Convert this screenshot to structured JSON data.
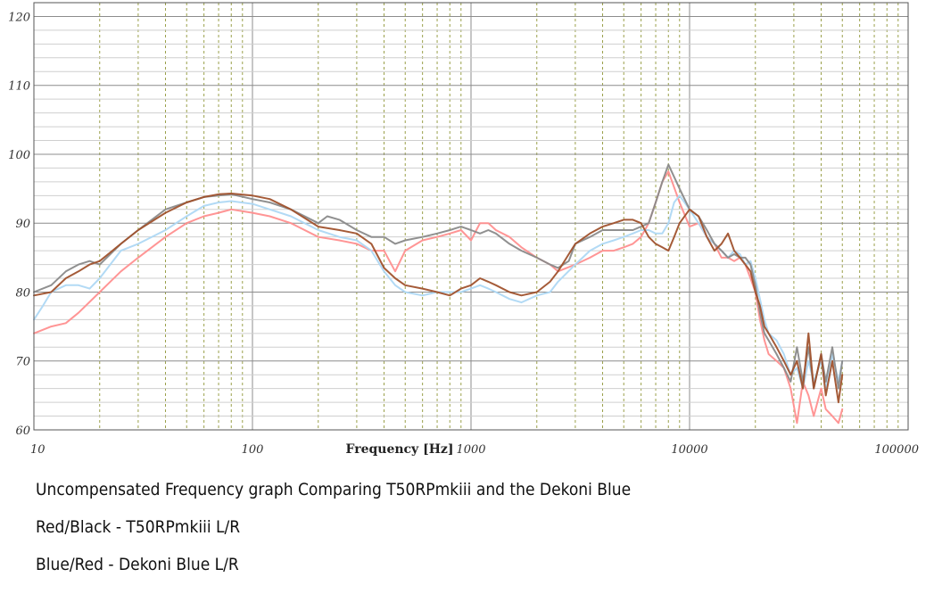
{
  "chart_data": {
    "type": "line",
    "xlabel": "Frequency [Hz]",
    "x_scale": "log",
    "xlim": [
      10,
      100000
    ],
    "ylim": [
      60,
      122
    ],
    "x_ticks": [
      "10",
      "100",
      "1000",
      "10000",
      "100000"
    ],
    "y_ticks": [
      "60",
      "70",
      "80",
      "90",
      "100",
      "110",
      "120"
    ],
    "grid": true,
    "series": [
      {
        "color": "#ff8f8f",
        "points": [
          [
            10,
            74
          ],
          [
            12,
            75
          ],
          [
            14,
            75.5
          ],
          [
            16,
            77
          ],
          [
            20,
            80
          ],
          [
            25,
            83
          ],
          [
            30,
            85
          ],
          [
            40,
            88
          ],
          [
            50,
            90
          ],
          [
            60,
            91
          ],
          [
            70,
            91.5
          ],
          [
            80,
            92
          ],
          [
            100,
            91.5
          ],
          [
            120,
            91
          ],
          [
            150,
            90
          ],
          [
            200,
            88
          ],
          [
            250,
            87.5
          ],
          [
            300,
            87
          ],
          [
            350,
            86
          ],
          [
            400,
            86
          ],
          [
            450,
            83
          ],
          [
            500,
            86
          ],
          [
            600,
            87.5
          ],
          [
            700,
            88
          ],
          [
            800,
            88.5
          ],
          [
            900,
            89
          ],
          [
            1000,
            87.5
          ],
          [
            1100,
            90
          ],
          [
            1200,
            90
          ],
          [
            1300,
            89
          ],
          [
            1500,
            88
          ],
          [
            1700,
            86.5
          ],
          [
            2000,
            85
          ],
          [
            2300,
            84
          ],
          [
            2500,
            83
          ],
          [
            3000,
            84
          ],
          [
            3500,
            85
          ],
          [
            4000,
            86
          ],
          [
            4500,
            86
          ],
          [
            5000,
            86.5
          ],
          [
            5500,
            87
          ],
          [
            6000,
            88
          ],
          [
            6500,
            90
          ],
          [
            7000,
            93
          ],
          [
            7500,
            96
          ],
          [
            8000,
            97.5
          ],
          [
            9000,
            93
          ],
          [
            10000,
            89.5
          ],
          [
            11000,
            90
          ],
          [
            12000,
            88
          ],
          [
            13000,
            87
          ],
          [
            14000,
            85
          ],
          [
            15000,
            85
          ],
          [
            16000,
            84.5
          ],
          [
            17000,
            85
          ],
          [
            18000,
            84
          ],
          [
            19000,
            82
          ],
          [
            20000,
            80
          ],
          [
            21000,
            76
          ],
          [
            22000,
            73
          ],
          [
            23000,
            71
          ],
          [
            25000,
            70
          ],
          [
            27000,
            69
          ],
          [
            29000,
            66
          ],
          [
            31000,
            61
          ],
          [
            33000,
            67
          ],
          [
            35000,
            65
          ],
          [
            37000,
            62
          ],
          [
            40000,
            66
          ],
          [
            42000,
            63
          ],
          [
            45000,
            62
          ],
          [
            48000,
            61
          ],
          [
            50000,
            63
          ]
        ]
      },
      {
        "color": "#aed8f4",
        "points": [
          [
            10,
            76
          ],
          [
            11,
            78
          ],
          [
            12,
            80
          ],
          [
            14,
            81
          ],
          [
            16,
            81
          ],
          [
            18,
            80.5
          ],
          [
            20,
            82
          ],
          [
            25,
            86
          ],
          [
            30,
            87
          ],
          [
            40,
            89
          ],
          [
            50,
            91
          ],
          [
            60,
            92.5
          ],
          [
            70,
            93
          ],
          [
            80,
            93.2
          ],
          [
            100,
            92.8
          ],
          [
            120,
            92
          ],
          [
            150,
            91
          ],
          [
            200,
            89
          ],
          [
            250,
            88
          ],
          [
            300,
            87.5
          ],
          [
            350,
            86
          ],
          [
            400,
            83
          ],
          [
            450,
            81
          ],
          [
            500,
            80
          ],
          [
            600,
            79.5
          ],
          [
            700,
            80
          ],
          [
            800,
            80
          ],
          [
            900,
            80
          ],
          [
            1000,
            80.5
          ],
          [
            1100,
            81
          ],
          [
            1200,
            80.5
          ],
          [
            1300,
            80
          ],
          [
            1500,
            79
          ],
          [
            1700,
            78.5
          ],
          [
            2000,
            79.5
          ],
          [
            2300,
            80
          ],
          [
            2500,
            81.5
          ],
          [
            3000,
            84
          ],
          [
            3500,
            86
          ],
          [
            4000,
            87
          ],
          [
            4500,
            87.5
          ],
          [
            5000,
            88
          ],
          [
            5500,
            88.5
          ],
          [
            6000,
            89
          ],
          [
            6500,
            89
          ],
          [
            7000,
            88.5
          ],
          [
            7500,
            88.5
          ],
          [
            8000,
            90
          ],
          [
            8500,
            93
          ],
          [
            9000,
            94
          ],
          [
            10000,
            92
          ],
          [
            11000,
            90
          ],
          [
            12000,
            88
          ],
          [
            13000,
            87
          ],
          [
            14000,
            86
          ],
          [
            15000,
            85
          ],
          [
            16000,
            86
          ],
          [
            17000,
            85.5
          ],
          [
            18000,
            84
          ],
          [
            19000,
            84.5
          ],
          [
            20000,
            82
          ],
          [
            21000,
            79
          ],
          [
            22000,
            76
          ],
          [
            23000,
            74
          ],
          [
            25000,
            73
          ],
          [
            27000,
            71
          ],
          [
            29000,
            68
          ],
          [
            31000,
            69
          ],
          [
            33000,
            66
          ],
          [
            35000,
            70
          ],
          [
            37000,
            67
          ],
          [
            40000,
            70
          ],
          [
            42000,
            66
          ],
          [
            45000,
            71
          ],
          [
            48000,
            67
          ],
          [
            50000,
            70
          ]
        ]
      },
      {
        "color": "#8a8a8a",
        "points": [
          [
            10,
            80
          ],
          [
            12,
            81
          ],
          [
            14,
            83
          ],
          [
            16,
            84
          ],
          [
            18,
            84.5
          ],
          [
            20,
            84
          ],
          [
            25,
            87
          ],
          [
            30,
            89
          ],
          [
            40,
            92
          ],
          [
            50,
            93
          ],
          [
            60,
            93.8
          ],
          [
            70,
            94
          ],
          [
            80,
            94.2
          ],
          [
            100,
            93.5
          ],
          [
            120,
            93
          ],
          [
            150,
            92
          ],
          [
            200,
            90
          ],
          [
            220,
            91
          ],
          [
            250,
            90.5
          ],
          [
            300,
            89
          ],
          [
            350,
            88
          ],
          [
            400,
            88
          ],
          [
            450,
            87
          ],
          [
            500,
            87.5
          ],
          [
            600,
            88
          ],
          [
            700,
            88.5
          ],
          [
            800,
            89
          ],
          [
            900,
            89.5
          ],
          [
            1000,
            89
          ],
          [
            1100,
            88.5
          ],
          [
            1200,
            89
          ],
          [
            1300,
            88.5
          ],
          [
            1500,
            87
          ],
          [
            1700,
            86
          ],
          [
            2000,
            85
          ],
          [
            2300,
            84
          ],
          [
            2500,
            83.5
          ],
          [
            2800,
            84.5
          ],
          [
            3000,
            87
          ],
          [
            3500,
            88
          ],
          [
            4000,
            89
          ],
          [
            4500,
            89
          ],
          [
            5000,
            89
          ],
          [
            5500,
            89
          ],
          [
            6000,
            89.5
          ],
          [
            6500,
            90
          ],
          [
            7000,
            93
          ],
          [
            7500,
            96
          ],
          [
            8000,
            98.5
          ],
          [
            9000,
            95
          ],
          [
            10000,
            92
          ],
          [
            11000,
            91
          ],
          [
            12000,
            89
          ],
          [
            13000,
            87
          ],
          [
            14000,
            86
          ],
          [
            15000,
            85
          ],
          [
            16000,
            85.5
          ],
          [
            17000,
            85
          ],
          [
            18000,
            85
          ],
          [
            19000,
            84
          ],
          [
            20000,
            81
          ],
          [
            21000,
            77
          ],
          [
            22000,
            74
          ],
          [
            23000,
            73
          ],
          [
            25000,
            71
          ],
          [
            27000,
            69
          ],
          [
            29000,
            67
          ],
          [
            31000,
            72
          ],
          [
            33000,
            67
          ],
          [
            35000,
            72
          ],
          [
            37000,
            66
          ],
          [
            40000,
            71
          ],
          [
            42000,
            67
          ],
          [
            45000,
            72
          ],
          [
            48000,
            66
          ],
          [
            50000,
            70
          ]
        ]
      },
      {
        "color": "#a0522d",
        "points": [
          [
            10,
            79.5
          ],
          [
            12,
            80
          ],
          [
            14,
            82
          ],
          [
            16,
            83
          ],
          [
            18,
            84
          ],
          [
            20,
            84.5
          ],
          [
            25,
            87
          ],
          [
            30,
            89
          ],
          [
            40,
            91.5
          ],
          [
            50,
            93
          ],
          [
            60,
            93.8
          ],
          [
            70,
            94.2
          ],
          [
            80,
            94.3
          ],
          [
            100,
            94
          ],
          [
            120,
            93.5
          ],
          [
            150,
            92
          ],
          [
            200,
            89.5
          ],
          [
            250,
            89
          ],
          [
            300,
            88.5
          ],
          [
            350,
            87
          ],
          [
            400,
            83.5
          ],
          [
            450,
            82
          ],
          [
            500,
            81
          ],
          [
            600,
            80.5
          ],
          [
            700,
            80
          ],
          [
            800,
            79.5
          ],
          [
            900,
            80.5
          ],
          [
            1000,
            81
          ],
          [
            1100,
            82
          ],
          [
            1200,
            81.5
          ],
          [
            1300,
            81
          ],
          [
            1500,
            80
          ],
          [
            1700,
            79.5
          ],
          [
            2000,
            80
          ],
          [
            2300,
            81.5
          ],
          [
            2500,
            83
          ],
          [
            3000,
            87
          ],
          [
            3500,
            88.5
          ],
          [
            4000,
            89.5
          ],
          [
            4500,
            90
          ],
          [
            5000,
            90.5
          ],
          [
            5500,
            90.5
          ],
          [
            6000,
            90
          ],
          [
            6500,
            88
          ],
          [
            7000,
            87
          ],
          [
            7500,
            86.5
          ],
          [
            8000,
            86
          ],
          [
            8500,
            88
          ],
          [
            9000,
            90
          ],
          [
            10000,
            92
          ],
          [
            11000,
            91
          ],
          [
            12000,
            88
          ],
          [
            13000,
            86
          ],
          [
            14000,
            87
          ],
          [
            15000,
            88.5
          ],
          [
            16000,
            86
          ],
          [
            17000,
            85
          ],
          [
            18000,
            84
          ],
          [
            19000,
            83
          ],
          [
            20000,
            80
          ],
          [
            21000,
            78
          ],
          [
            22000,
            75
          ],
          [
            23000,
            74
          ],
          [
            25000,
            72
          ],
          [
            27000,
            70
          ],
          [
            29000,
            68
          ],
          [
            31000,
            70
          ],
          [
            33000,
            66
          ],
          [
            35000,
            74
          ],
          [
            37000,
            66
          ],
          [
            40000,
            71
          ],
          [
            42000,
            65
          ],
          [
            45000,
            70
          ],
          [
            48000,
            64
          ],
          [
            50000,
            68
          ]
        ]
      }
    ]
  },
  "captions": {
    "line1": "Uncompensated Frequency graph Comparing T50RPmkiii and the Dekoni Blue",
    "line2": "Red/Black - T50RPmkiii L/R",
    "line3": "Blue/Red - Dekoni Blue L/R"
  }
}
